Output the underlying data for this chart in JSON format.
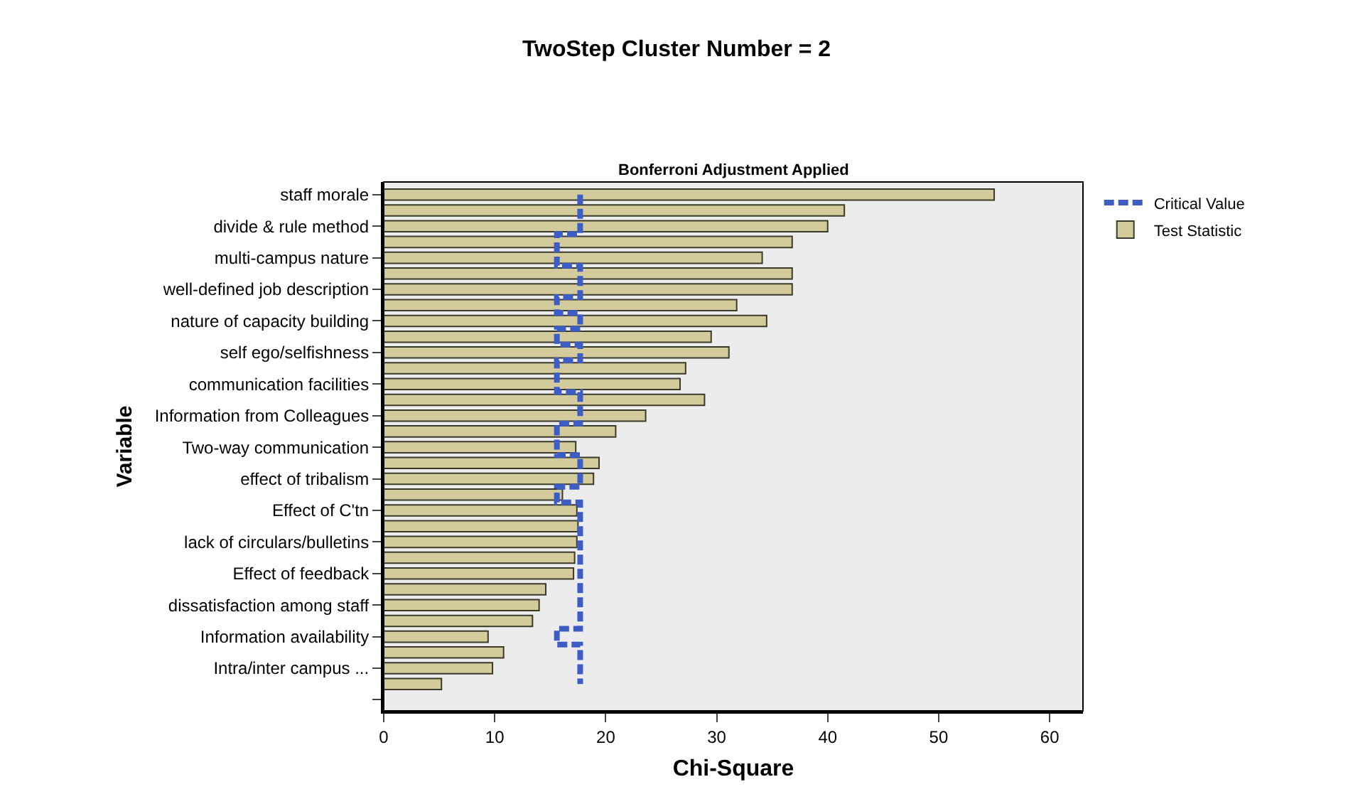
{
  "chart_data": {
    "type": "bar",
    "orientation": "horizontal",
    "title": "TwoStep Cluster Number = 2",
    "subtitle": "Bonferroni Adjustment Applied",
    "xlabel": "Chi-Square",
    "ylabel": "Variable",
    "categories": [
      "staff morale",
      null,
      "divide & rule method",
      null,
      "multi-campus nature",
      null,
      "well-defined job description",
      null,
      "nature of capacity building",
      null,
      "self ego/selfishness",
      null,
      "communication facilities",
      null,
      "Information from Colleagues",
      null,
      "Two-way communication",
      null,
      "effect of tribalism",
      null,
      "Effect of C'tn",
      null,
      "lack of circulars/bulletins",
      null,
      "Effect of feedback",
      null,
      "dissatisfaction among staff",
      null,
      "Information availability",
      null,
      "Intra/inter campus ...",
      null,
      null
    ],
    "series": [
      {
        "name": "Test Statistic",
        "color": "#d3cb9c",
        "values": [
          55,
          41.5,
          40,
          36.8,
          34.1,
          36.8,
          36.8,
          31.8,
          34.5,
          29.5,
          31.1,
          27.2,
          26.7,
          28.9,
          23.6,
          20.9,
          17.3,
          19.4,
          18.9,
          16.1,
          17.4,
          17.5,
          17.4,
          17.2,
          17.1,
          14.6,
          14.0,
          13.4,
          9.4,
          10.8,
          9.8,
          5.2,
          null
        ]
      },
      {
        "name": "Critical Value",
        "type": "step",
        "color": "#3d5cc4",
        "line_style": "dashed",
        "values": [
          17.7,
          17.7,
          17.7,
          15.6,
          15.6,
          17.7,
          17.7,
          15.6,
          17.7,
          15.6,
          17.7,
          15.6,
          15.6,
          17.7,
          17.7,
          15.6,
          15.6,
          17.7,
          17.7,
          15.6,
          17.7,
          17.7,
          17.7,
          17.7,
          17.7,
          17.7,
          17.7,
          17.7,
          15.6,
          17.7,
          17.7,
          17.7,
          null
        ]
      }
    ],
    "xlim": [
      0,
      63
    ],
    "xticks": [
      0,
      10,
      20,
      30,
      40,
      50,
      60
    ],
    "grid": false,
    "legend": "top right"
  }
}
